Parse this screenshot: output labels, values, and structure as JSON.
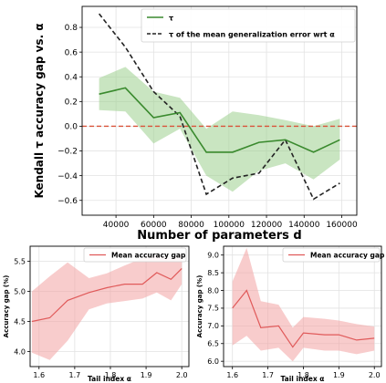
{
  "chart_data": [
    {
      "type": "line",
      "ylabel": "Kendall τ accuracy gap vs. α",
      "xlabel": "Number of parameters d",
      "xlim": [
        22000,
        168000
      ],
      "ylim": [
        -0.72,
        0.97
      ],
      "xticks": [
        40000,
        60000,
        80000,
        100000,
        120000,
        140000,
        160000
      ],
      "xticklabels": [
        "40000",
        "60000",
        "80000",
        "100000",
        "120000",
        "140000",
        "160000"
      ],
      "yticks": [
        -0.6,
        -0.4,
        -0.2,
        0.0,
        0.2,
        0.4,
        0.6,
        0.8
      ],
      "yticklabels": [
        "−0.6",
        "−0.4",
        "−0.2",
        "0.0",
        "0.2",
        "0.4",
        "0.6",
        "0.8"
      ],
      "grid": true,
      "legend_position": "top-right",
      "series": [
        {
          "name": "τ",
          "color": "#3a8a2e",
          "x": [
            31000,
            45000,
            60000,
            74000,
            88000,
            102000,
            116000,
            130000,
            145000,
            159000
          ],
          "y": [
            0.26,
            0.31,
            0.07,
            0.11,
            -0.21,
            -0.21,
            -0.13,
            -0.11,
            -0.21,
            -0.11
          ],
          "band_upper": [
            0.39,
            0.48,
            0.28,
            0.23,
            -0.02,
            0.12,
            0.09,
            0.05,
            0.0,
            0.06
          ],
          "band_lower": [
            0.13,
            0.12,
            -0.14,
            -0.02,
            -0.4,
            -0.53,
            -0.36,
            -0.3,
            -0.43,
            -0.27
          ]
        },
        {
          "name": "τ of the mean generalization error wrt α",
          "color": "#222222",
          "dashed": true,
          "x": [
            31000,
            45000,
            60000,
            74000,
            88000,
            102000,
            116000,
            130000,
            145000,
            159000
          ],
          "y": [
            0.91,
            0.64,
            0.28,
            0.08,
            -0.55,
            -0.42,
            -0.38,
            -0.11,
            -0.59,
            -0.46
          ]
        }
      ],
      "reference_line": {
        "y": 0.0,
        "color": "#d9533a",
        "dashed": true
      }
    },
    {
      "type": "line",
      "ylabel": "Accuracy gap (%)",
      "xlabel": "Tail index α",
      "xlim": [
        1.575,
        2.02
      ],
      "ylim": [
        3.75,
        5.75
      ],
      "xticks": [
        1.6,
        1.7,
        1.8,
        1.9,
        2.0
      ],
      "xticklabels": [
        "1.6",
        "1.7",
        "1.8",
        "1.9",
        "2.0"
      ],
      "yticks": [
        4.0,
        4.5,
        5.0,
        5.5
      ],
      "yticklabels": [
        "4.0",
        "4.5",
        "5.0",
        "5.5"
      ],
      "grid": true,
      "legend_position": "top-left",
      "series": [
        {
          "name": "Mean accuracy gap",
          "color": "#e05a5a",
          "x": [
            1.58,
            1.63,
            1.68,
            1.74,
            1.79,
            1.84,
            1.89,
            1.93,
            1.97,
            2.0
          ],
          "y": [
            4.5,
            4.56,
            4.85,
            4.98,
            5.06,
            5.12,
            5.12,
            5.31,
            5.2,
            5.38
          ],
          "band_upper": [
            5.0,
            5.25,
            5.48,
            5.22,
            5.3,
            5.43,
            5.55,
            5.6,
            5.55,
            5.62
          ],
          "band_lower": [
            3.98,
            3.86,
            4.18,
            4.7,
            4.8,
            4.84,
            4.88,
            4.98,
            4.85,
            5.12
          ]
        }
      ]
    },
    {
      "type": "line",
      "ylabel": "Accuracy gap (%)",
      "xlabel": "Tail index α",
      "xlim": [
        1.575,
        2.02
      ],
      "ylim": [
        5.85,
        9.25
      ],
      "xticks": [
        1.6,
        1.7,
        1.8,
        1.9,
        2.0
      ],
      "xticklabels": [
        "1.6",
        "1.7",
        "1.8",
        "1.9",
        "2.0"
      ],
      "yticks": [
        6.0,
        6.5,
        7.0,
        7.5,
        8.0,
        8.5,
        9.0
      ],
      "yticklabels": [
        "6.0",
        "6.5",
        "7.0",
        "7.5",
        "8.0",
        "8.5",
        "9.0"
      ],
      "grid": true,
      "legend_position": "top-right",
      "series": [
        {
          "name": "Mean accuracy gap",
          "color": "#e05a5a",
          "x": [
            1.6,
            1.64,
            1.68,
            1.73,
            1.77,
            1.8,
            1.86,
            1.9,
            1.95,
            2.0
          ],
          "y": [
            7.5,
            8.0,
            6.95,
            7.0,
            6.4,
            6.8,
            6.75,
            6.75,
            6.6,
            6.65
          ],
          "band_upper": [
            8.25,
            9.2,
            7.7,
            7.6,
            6.95,
            7.25,
            7.2,
            7.15,
            7.05,
            6.98
          ],
          "band_lower": [
            6.45,
            6.72,
            6.3,
            6.38,
            6.0,
            6.38,
            6.3,
            6.3,
            6.2,
            6.3
          ]
        }
      ]
    }
  ]
}
